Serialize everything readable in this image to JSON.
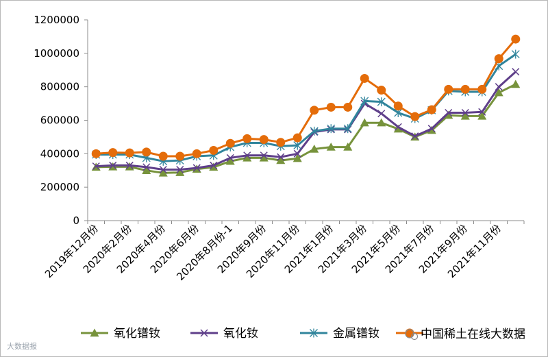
{
  "chart_data": {
    "type": "line",
    "ylim": [
      0,
      1200000
    ],
    "yticks": [
      0,
      200000,
      400000,
      600000,
      800000,
      1000000,
      1200000
    ],
    "grid": false,
    "legend_position": "bottom",
    "xtick_labels": [
      "2019年12月份",
      "2020年2月份",
      "2020年4月份",
      "2020年6月份",
      "2020年8月份-1",
      "2020年9月份",
      "2020年11月份",
      "2021年1月份",
      "2021年3月份",
      "2021年5月份",
      "2021年7月份",
      "2021年9月份",
      "2021年11月份"
    ],
    "xtick_positions": [
      0,
      2,
      4,
      6,
      8,
      10,
      12,
      14,
      16,
      18,
      20,
      22,
      24
    ],
    "point_count": 26,
    "series": [
      {
        "name": "氧化镨钕",
        "color": "#77933c",
        "marker": "triangle",
        "values": [
          320000,
          322000,
          322000,
          300000,
          285000,
          288000,
          308000,
          320000,
          355000,
          375000,
          375000,
          360000,
          372000,
          428000,
          440000,
          440000,
          585000,
          585000,
          548000,
          500000,
          540000,
          630000,
          625000,
          625000,
          765000,
          815000
        ]
      },
      {
        "name": "氧化钕",
        "color": "#5f3f8a",
        "marker": "x",
        "values": [
          325000,
          330000,
          330000,
          320000,
          305000,
          305000,
          315000,
          330000,
          375000,
          390000,
          390000,
          380000,
          400000,
          530000,
          545000,
          545000,
          700000,
          640000,
          560000,
          505000,
          550000,
          645000,
          645000,
          650000,
          800000,
          890000
        ]
      },
      {
        "name": "金属镨钕",
        "color": "#31859c",
        "marker": "asterisk",
        "values": [
          395000,
          395000,
          395000,
          375000,
          355000,
          360000,
          385000,
          390000,
          440000,
          465000,
          465000,
          445000,
          450000,
          535000,
          550000,
          550000,
          715000,
          710000,
          645000,
          610000,
          660000,
          775000,
          770000,
          770000,
          925000,
          995000
        ]
      },
      {
        "name": "中国稀土",
        "color": "#e46c0a",
        "marker": "circle",
        "values": [
          400000,
          407000,
          405000,
          410000,
          385000,
          385000,
          400000,
          420000,
          462000,
          490000,
          485000,
          468000,
          495000,
          660000,
          678000,
          678000,
          850000,
          780000,
          685000,
          622000,
          663000,
          785000,
          785000,
          785000,
          968000,
          1085000
        ]
      }
    ]
  },
  "watermarks": {
    "bottom_left": "大数据报",
    "bottom_right": "中国稀土在线大数据",
    "bottom_right_icon": "wechat-icon"
  }
}
